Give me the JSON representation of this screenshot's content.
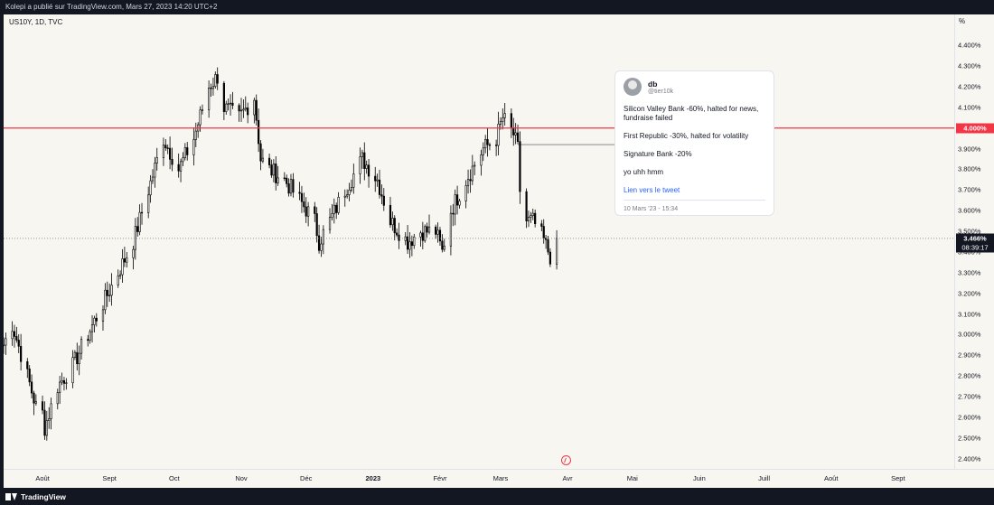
{
  "header": {
    "publish_text": "Kolepi a publié sur TradingView.com, Mars 27, 2023 14:20 UTC+2"
  },
  "symbol": "US10Y, 1D, TVC",
  "axis_unit": "%",
  "footer": {
    "brand": "TradingView"
  },
  "colors": {
    "background": "#f8f6f1",
    "candle": "#000000",
    "resistance": "#f23645",
    "chrome": "#131722"
  },
  "chart_data": {
    "type": "candlestick",
    "ylim": [
      2.35,
      4.55
    ],
    "y_ticks": [
      2.4,
      2.5,
      2.6,
      2.7,
      2.8,
      2.9,
      3.0,
      3.1,
      3.2,
      3.3,
      3.4,
      3.5,
      3.6,
      3.7,
      3.8,
      3.9,
      4.0,
      4.1,
      4.2,
      4.3,
      4.4
    ],
    "y_tick_labels": [
      "2.400%",
      "2.500%",
      "2.600%",
      "2.700%",
      "2.800%",
      "2.900%",
      "3.000%",
      "3.100%",
      "3.200%",
      "3.300%",
      "3.400%",
      "3.500%",
      "3.600%",
      "3.700%",
      "3.800%",
      "3.900%",
      "4.000%",
      "4.100%",
      "4.200%",
      "4.300%",
      "4.400%"
    ],
    "x_ticks": [
      {
        "label": "Août",
        "date": "2022-08-01"
      },
      {
        "label": "Sept",
        "date": "2022-09-01"
      },
      {
        "label": "Oct",
        "date": "2022-10-01"
      },
      {
        "label": "Nov",
        "date": "2022-11-01"
      },
      {
        "label": "Déc",
        "date": "2022-12-01"
      },
      {
        "label": "2023",
        "date": "2023-01-01",
        "bold": true
      },
      {
        "label": "Févr",
        "date": "2023-02-01"
      },
      {
        "label": "Mars",
        "date": "2023-03-01"
      },
      {
        "label": "Avr",
        "date": "2023-04-01"
      },
      {
        "label": "Mai",
        "date": "2023-05-01"
      },
      {
        "label": "Juin",
        "date": "2023-06-01"
      },
      {
        "label": "Juill",
        "date": "2023-07-01"
      },
      {
        "label": "Août",
        "date": "2023-08-01"
      },
      {
        "label": "Sept",
        "date": "2023-09-01"
      }
    ],
    "x_range": [
      "2022-07-14",
      "2023-09-27"
    ],
    "series": [
      {
        "points": [
          [
            "2022-07-14",
            2.95
          ],
          [
            "2022-07-18",
            3.05
          ],
          [
            "2022-07-25",
            2.8
          ],
          [
            "2022-07-29",
            2.65
          ],
          [
            "2022-08-01",
            2.62
          ],
          [
            "2022-08-02",
            2.55
          ],
          [
            "2022-08-08",
            2.75
          ],
          [
            "2022-08-15",
            2.85
          ],
          [
            "2022-08-22",
            3.0
          ],
          [
            "2022-08-29",
            3.15
          ],
          [
            "2022-09-05",
            3.3
          ],
          [
            "2022-09-12",
            3.45
          ],
          [
            "2022-09-19",
            3.7
          ],
          [
            "2022-09-26",
            3.95
          ],
          [
            "2022-10-03",
            3.8
          ],
          [
            "2022-10-10",
            3.95
          ],
          [
            "2022-10-17",
            4.2
          ],
          [
            "2022-10-21",
            4.25
          ],
          [
            "2022-10-24",
            4.1
          ],
          [
            "2022-10-31",
            4.05
          ],
          [
            "2022-11-07",
            4.15
          ],
          [
            "2022-11-10",
            3.85
          ],
          [
            "2022-11-14",
            3.8
          ],
          [
            "2022-11-21",
            3.75
          ],
          [
            "2022-11-28",
            3.65
          ],
          [
            "2022-12-05",
            3.55
          ],
          [
            "2022-12-07",
            3.45
          ],
          [
            "2022-12-12",
            3.55
          ],
          [
            "2022-12-19",
            3.7
          ],
          [
            "2022-12-27",
            3.85
          ],
          [
            "2023-01-03",
            3.75
          ],
          [
            "2023-01-09",
            3.55
          ],
          [
            "2023-01-17",
            3.45
          ],
          [
            "2023-01-23",
            3.5
          ],
          [
            "2023-01-30",
            3.5
          ],
          [
            "2023-02-02",
            3.4
          ],
          [
            "2023-02-06",
            3.6
          ],
          [
            "2023-02-13",
            3.75
          ],
          [
            "2023-02-21",
            3.9
          ],
          [
            "2023-02-27",
            3.95
          ],
          [
            "2023-03-02",
            4.05
          ],
          [
            "2023-03-07",
            3.97
          ],
          [
            "2023-03-09",
            3.9
          ],
          [
            "2023-03-10",
            3.7
          ],
          [
            "2023-03-13",
            3.55
          ],
          [
            "2023-03-16",
            3.55
          ],
          [
            "2023-03-20",
            3.48
          ],
          [
            "2023-03-22",
            3.43
          ],
          [
            "2023-03-24",
            3.38
          ],
          [
            "2023-03-27",
            3.466
          ]
        ]
      }
    ],
    "resistance_level": 4.0,
    "resistance_label": "4.000%",
    "last_price": 3.466,
    "last_price_label": "3.466%",
    "countdown": "08:39:17",
    "annotation_line": {
      "from": "2023-03-09",
      "to": "2023-04-24",
      "value": 3.92
    }
  },
  "tweet": {
    "name": "db",
    "handle": "@tier10k",
    "line1": "Silicon Valley Bank -60%, halted for news, fundraise failed",
    "line2": "First Republic -30%, halted for volatility",
    "line3": "Signature Bank -20%",
    "line4": "yo uhh hmm",
    "link": "Lien vers le tweet",
    "date": "10 Mars '23 - 15:34"
  }
}
